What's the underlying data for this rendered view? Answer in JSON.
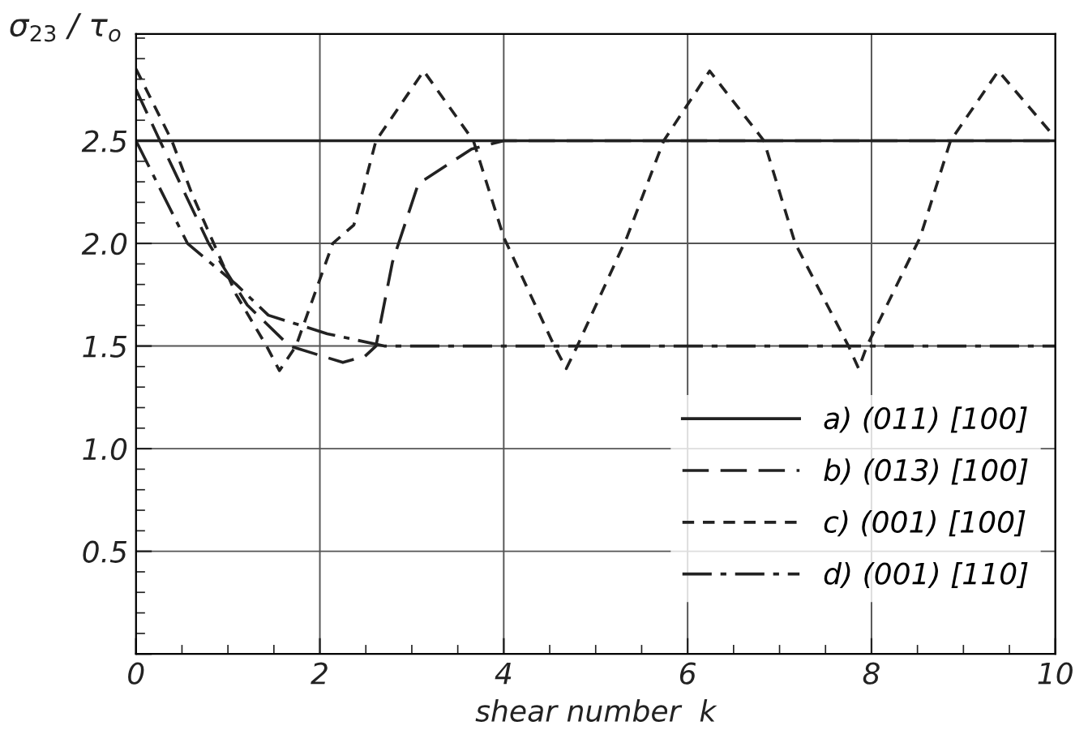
{
  "chart_data": {
    "type": "line",
    "ylabel": "σ$_{23}$ / τ$_{o}$",
    "xlabel": "shear number  k",
    "xlim": [
      0,
      10
    ],
    "ylim": [
      0,
      3.02
    ],
    "xticks": [
      0,
      2,
      4,
      6,
      8,
      10
    ],
    "yticks": [
      {
        "value": 0,
        "label": null
      },
      {
        "value": 0.5,
        "label": "0.5"
      },
      {
        "value": 1.0,
        "label": "1.0"
      },
      {
        "value": 1.5,
        "label": "1.5"
      },
      {
        "value": 2.0,
        "label": "2.0"
      },
      {
        "value": 2.5,
        "label": "2.5"
      }
    ],
    "grid": true,
    "legend": "bottom right",
    "marker": "none",
    "series": [
      {
        "name": "a) (011) [100]",
        "color": "#222222",
        "line_style": "solid",
        "x": [
          0,
          10
        ],
        "values": [
          2.5,
          2.5
        ]
      },
      {
        "name": "b) (013) [100]",
        "color": "#222222",
        "line_style": "longdash",
        "x": [
          0,
          0.26,
          0.79,
          1.21,
          1.67,
          2.25,
          2.49,
          2.61,
          2.79,
          3.07,
          3.65,
          4.0,
          10
        ],
        "values": [
          2.75,
          2.5,
          2.0,
          1.7,
          1.5,
          1.42,
          1.45,
          1.5,
          1.91,
          2.29,
          2.46,
          2.5,
          2.5
        ]
      },
      {
        "name": "c) (001) [100]",
        "color": "#222222",
        "line_style": "dashed",
        "x": [
          0,
          0.39,
          0.61,
          1.09,
          1.42,
          1.56,
          1.74,
          2.14,
          2.37,
          2.61,
          3.13,
          3.67,
          4.0,
          4.55,
          4.68,
          4.8,
          5.34,
          5.74,
          6.24,
          6.83,
          7.17,
          7.75,
          7.86,
          7.95,
          8.53,
          8.86,
          9.38,
          9.97
        ],
        "values": [
          2.85,
          2.5,
          2.24,
          1.75,
          1.5,
          1.38,
          1.5,
          2.0,
          2.09,
          2.5,
          2.84,
          2.5,
          2.03,
          1.5,
          1.39,
          1.5,
          2.03,
          2.5,
          2.84,
          2.5,
          2.0,
          1.5,
          1.39,
          1.5,
          2.03,
          2.5,
          2.84,
          2.53
        ]
      },
      {
        "name": "d) (001) [110]",
        "color": "#222222",
        "line_style": "dashdot",
        "x": [
          0,
          0.56,
          1.09,
          1.44,
          2.08,
          2.7,
          10
        ],
        "values": [
          2.5,
          2.0,
          1.8,
          1.65,
          1.56,
          1.5,
          1.5
        ]
      }
    ]
  }
}
